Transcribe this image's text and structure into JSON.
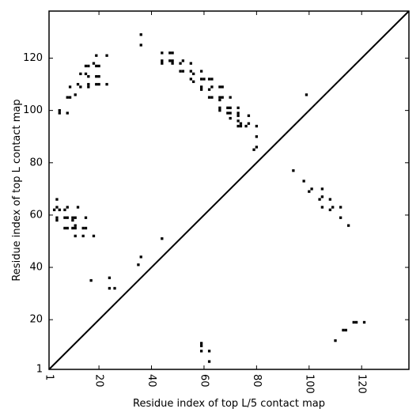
{
  "chart_data": {
    "type": "scatter",
    "title": "",
    "xlabel": "Residue index of top L/5 contact map",
    "ylabel": "Residue index of top L contact map",
    "xlim": [
      1,
      138
    ],
    "ylim": [
      1,
      138
    ],
    "x_ticks": [
      1,
      20,
      40,
      60,
      80,
      100,
      120
    ],
    "y_ticks": [
      1,
      20,
      40,
      60,
      80,
      100,
      120
    ],
    "x_tick_labels": [
      "1",
      "20",
      "40",
      "60",
      "80",
      "100",
      "120"
    ],
    "y_tick_labels": [
      "1",
      "20",
      "40",
      "60",
      "80",
      "100",
      "120"
    ],
    "x_tick_rotation_deg": 90,
    "grid": false,
    "diagonal_line": true,
    "marker": "square",
    "color": "#000000",
    "points_upper_left": [
      [
        36,
        129
      ],
      [
        36,
        125
      ],
      [
        19,
        121
      ],
      [
        23,
        121
      ],
      [
        44,
        122
      ],
      [
        47,
        122
      ],
      [
        48,
        122
      ],
      [
        44,
        119
      ],
      [
        44,
        118
      ],
      [
        47,
        119
      ],
      [
        48,
        118
      ],
      [
        48,
        119
      ],
      [
        51,
        118
      ],
      [
        52,
        119
      ],
      [
        55,
        118
      ],
      [
        15,
        117
      ],
      [
        16,
        117
      ],
      [
        18,
        118
      ],
      [
        19,
        117
      ],
      [
        20,
        117
      ],
      [
        13,
        114
      ],
      [
        15,
        114
      ],
      [
        16,
        113
      ],
      [
        19,
        113
      ],
      [
        20,
        113
      ],
      [
        51,
        115
      ],
      [
        52,
        115
      ],
      [
        55,
        115
      ],
      [
        56,
        114
      ],
      [
        55,
        112
      ],
      [
        56,
        111
      ],
      [
        59,
        115
      ],
      [
        59,
        112
      ],
      [
        60,
        112
      ],
      [
        62,
        112
      ],
      [
        63,
        112
      ],
      [
        9,
        109
      ],
      [
        12,
        110
      ],
      [
        13,
        109
      ],
      [
        16,
        110
      ],
      [
        16,
        109
      ],
      [
        19,
        110
      ],
      [
        20,
        110
      ],
      [
        23,
        110
      ],
      [
        59,
        109
      ],
      [
        59,
        108
      ],
      [
        62,
        108
      ],
      [
        63,
        109
      ],
      [
        66,
        109
      ],
      [
        67,
        109
      ],
      [
        11,
        106
      ],
      [
        9,
        105
      ],
      [
        8,
        105
      ],
      [
        62,
        105
      ],
      [
        63,
        105
      ],
      [
        66,
        105
      ],
      [
        67,
        105
      ],
      [
        66,
        104
      ],
      [
        70,
        105
      ],
      [
        5,
        100
      ],
      [
        5,
        99
      ],
      [
        8,
        99
      ],
      [
        66,
        101
      ],
      [
        66,
        100
      ],
      [
        69,
        101
      ],
      [
        70,
        101
      ],
      [
        69,
        99
      ],
      [
        70,
        99
      ],
      [
        70,
        97
      ],
      [
        73,
        101
      ],
      [
        73,
        99
      ],
      [
        73,
        98
      ],
      [
        73,
        96
      ],
      [
        74,
        95
      ],
      [
        73,
        94
      ],
      [
        74,
        94
      ],
      [
        76,
        94
      ],
      [
        77,
        95
      ],
      [
        77,
        98
      ],
      [
        80,
        94
      ],
      [
        80,
        90
      ],
      [
        80,
        86
      ],
      [
        79,
        85
      ],
      [
        99,
        106
      ],
      [
        94,
        77
      ],
      [
        98,
        73
      ],
      [
        101,
        70
      ],
      [
        100,
        69
      ],
      [
        105,
        70
      ],
      [
        105,
        67
      ],
      [
        104,
        66
      ],
      [
        108,
        66
      ],
      [
        112,
        63
      ],
      [
        109,
        63
      ],
      [
        108,
        62
      ],
      [
        105,
        63
      ],
      [
        112,
        59
      ],
      [
        115,
        56
      ],
      [
        4,
        66
      ],
      [
        4,
        63
      ],
      [
        3,
        62
      ],
      [
        5,
        62
      ],
      [
        7,
        62
      ],
      [
        8,
        63
      ],
      [
        4,
        59
      ],
      [
        4,
        58
      ],
      [
        7,
        59
      ],
      [
        8,
        59
      ],
      [
        10,
        59
      ],
      [
        11,
        59
      ],
      [
        12,
        63
      ],
      [
        10,
        58
      ],
      [
        7,
        55
      ],
      [
        8,
        55
      ],
      [
        10,
        55
      ],
      [
        11,
        56
      ],
      [
        11,
        55
      ],
      [
        14,
        55
      ],
      [
        15,
        55
      ],
      [
        15,
        59
      ],
      [
        11,
        52
      ],
      [
        14,
        52
      ],
      [
        18,
        52
      ],
      [
        17,
        35
      ],
      [
        24,
        36
      ],
      [
        24,
        32
      ],
      [
        26,
        32
      ],
      [
        36,
        44
      ],
      [
        35,
        41
      ],
      [
        44,
        51
      ],
      [
        59,
        11
      ],
      [
        59,
        10
      ],
      [
        59,
        8
      ],
      [
        62,
        8
      ],
      [
        62,
        4
      ],
      [
        110,
        12
      ],
      [
        113,
        16
      ],
      [
        114,
        16
      ],
      [
        117,
        19
      ],
      [
        118,
        19
      ],
      [
        121,
        19
      ]
    ]
  }
}
